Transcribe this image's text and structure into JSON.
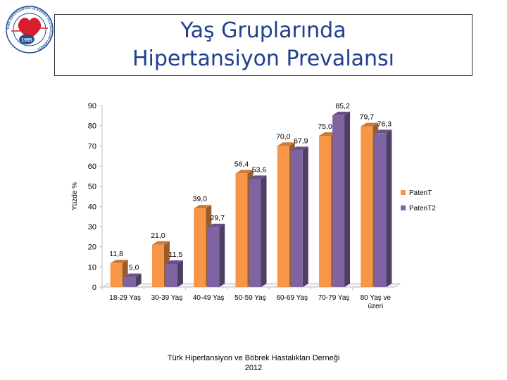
{
  "logo": {
    "year": "1995",
    "ring_text": "TÜRK HİPERTANSİYON VE BÖBREK HASTALIKLARI DERNEĞİ",
    "colors": {
      "red": "#d71f2b",
      "blue": "#1d4f91"
    }
  },
  "header": {
    "title_line1": "Yaş Gruplarında",
    "title_line2": "Hipertansiyon Prevalansı"
  },
  "footer": {
    "line1": "Türk Hipertansiyon ve Böbrek Hastalıkları Derneği",
    "line2": "2012"
  },
  "chart_data": {
    "type": "bar",
    "categories": [
      "18-29 Yaş",
      "30-39 Yaş",
      "40-49 Yaş",
      "50-59 Yaş",
      "60-69 Yaş",
      "70-79 Yaş",
      "80 Yaş ve üzeri"
    ],
    "category_lines": [
      [
        "18-29 Yaş"
      ],
      [
        "30-39 Yaş"
      ],
      [
        "40-49 Yaş"
      ],
      [
        "50-59 Yaş"
      ],
      [
        "60-69 Yaş"
      ],
      [
        "70-79 Yaş"
      ],
      [
        "80 Yaş ve",
        "üzeri"
      ]
    ],
    "series": [
      {
        "name": "PatenT",
        "values": [
          11.8,
          21.0,
          39.0,
          56.4,
          70.0,
          75.0,
          79.7
        ],
        "labels": [
          "11,8",
          "21,0",
          "39,0",
          "56,4",
          "70,0",
          "75,0",
          "79,7"
        ],
        "color": "#f79646"
      },
      {
        "name": "PatenT2",
        "values": [
          5.0,
          11.5,
          29.7,
          53.6,
          67.9,
          85.2,
          76.3
        ],
        "labels": [
          "5,0",
          "11,5",
          "29,7",
          "53,6",
          "67,9",
          "85,2",
          "76,3"
        ],
        "color": "#8064a2"
      }
    ],
    "ylabel": "Yüzde %",
    "ylim": [
      0,
      90
    ],
    "yticks": [
      0,
      10,
      20,
      30,
      40,
      50,
      60,
      70,
      80,
      90
    ],
    "grid": false,
    "legend": "right",
    "style": "3d"
  }
}
